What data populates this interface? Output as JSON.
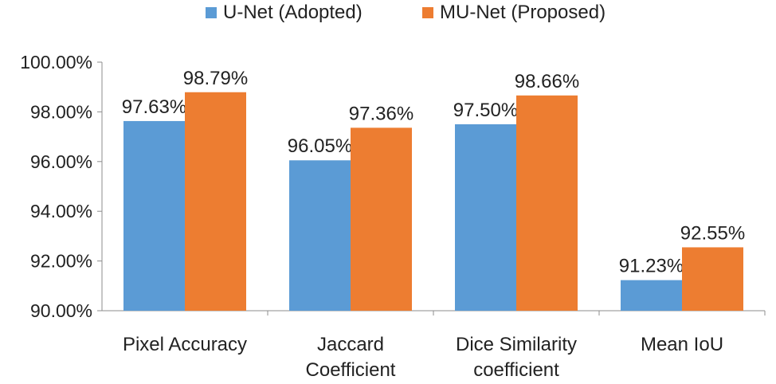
{
  "chart_data": {
    "type": "bar",
    "title": "",
    "xlabel": "",
    "ylabel": "",
    "ylim": [
      0.9,
      1.0
    ],
    "yticks": [
      "90.00%",
      "92.00%",
      "94.00%",
      "96.00%",
      "98.00%",
      "100.00%"
    ],
    "categories": [
      [
        "Pixel Accuracy"
      ],
      [
        "Jaccard",
        "Coefficient"
      ],
      [
        "Dice Similarity",
        "coefficient"
      ],
      [
        "Mean IoU"
      ]
    ],
    "series": [
      {
        "name": "U-Net (Adopted)",
        "color": "#5b9bd5",
        "values": [
          0.9763,
          0.9605,
          0.975,
          0.9123
        ],
        "labels": [
          "97.63%",
          "96.05%",
          "97.50%",
          "91.23%"
        ]
      },
      {
        "name": "MU-Net (Proposed)",
        "color": "#ed7d31",
        "values": [
          0.9879,
          0.9736,
          0.9866,
          0.9255
        ],
        "labels": [
          "98.79%",
          "97.36%",
          "98.66%",
          "92.55%"
        ]
      }
    ],
    "legend": "top-center",
    "grid": false
  }
}
